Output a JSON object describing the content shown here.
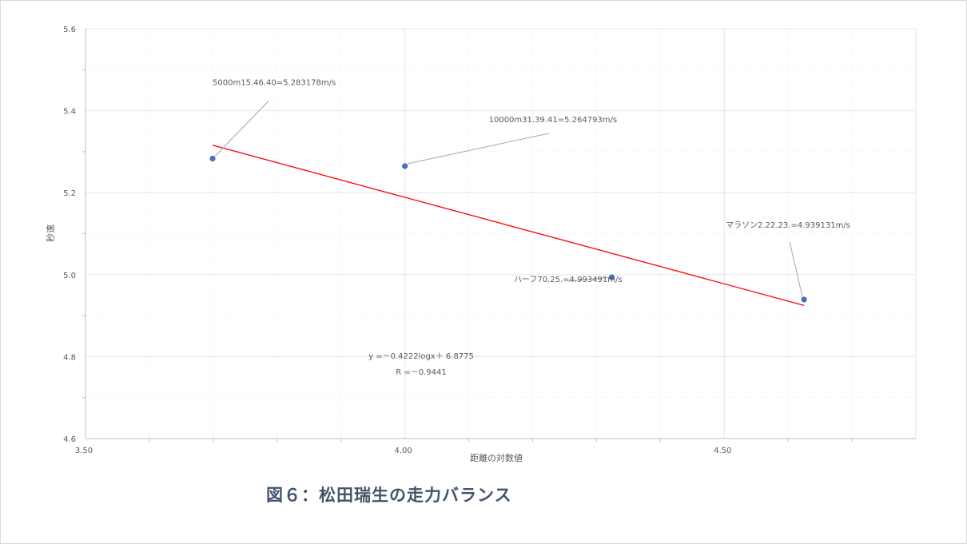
{
  "caption": "図６：松田瑞生の走力バランス",
  "chart_data": {
    "type": "scatter",
    "title": "",
    "xlabel": "距離の対数値",
    "ylabel": "秒速",
    "xlim": [
      3.5,
      4.8
    ],
    "ylim": [
      4.6,
      5.6
    ],
    "x_ticks": [
      3.5,
      4.0,
      4.5
    ],
    "x_tick_labels": [
      "3.50",
      "4.00",
      "4.50"
    ],
    "y_ticks": [
      4.6,
      4.8,
      5.0,
      5.2,
      5.4,
      5.6
    ],
    "y_tick_labels": [
      "4.6",
      "4.8",
      "5.0",
      "5.2",
      "5.4",
      "5.6"
    ],
    "grid": true,
    "marker_color": "#4472c4",
    "trend_color": "#ff0000",
    "points": [
      {
        "x": 3.699,
        "y": 5.283178,
        "label": "5000m15.46.40=5.283178m/s"
      },
      {
        "x": 4.0,
        "y": 5.264793,
        "label": "10000m31.39.41=5.264793m/s"
      },
      {
        "x": 4.324,
        "y": 4.993491,
        "label": "ハーフ70.25.=4.993491m/s"
      },
      {
        "x": 4.625,
        "y": 4.939131,
        "label": "マラソン2.22.23.=4.939131m/s"
      }
    ],
    "trendline": {
      "type": "linear",
      "x_range": [
        3.699,
        4.625
      ],
      "equation": "y =－0.4222logx＋ 6.8775",
      "r_text": "R =－0.9441",
      "slope": -0.4222,
      "intercept": 6.8775
    }
  }
}
